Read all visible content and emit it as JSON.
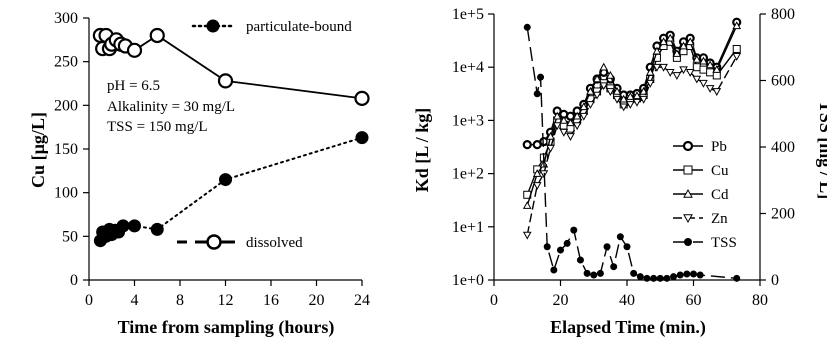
{
  "colors": {
    "ink": "#000000",
    "background": "#ffffff"
  },
  "chart_data": [
    {
      "type": "scatter",
      "xlabel": "Time from sampling (hours)",
      "ylabel": "Cu [µg/L]",
      "xlim": [
        0,
        24
      ],
      "ylim": [
        0,
        300
      ],
      "xticks": [
        "0",
        "4",
        "8",
        "12",
        "16",
        "20",
        "24"
      ],
      "yticks": [
        "0",
        "50",
        "100",
        "150",
        "200",
        "250",
        "300"
      ],
      "annotations": [
        "pH = 6.5",
        "Alkalinity = 30 mg/L",
        "TSS = 150 mg/L"
      ],
      "legend_position": "top-right and lower-middle",
      "series": [
        {
          "name": "particulate-bound",
          "marker": "filled-circle",
          "line": "dotted",
          "x": [
            1.0,
            1.2,
            1.5,
            1.8,
            2.0,
            2.3,
            2.6,
            3.0,
            4.0,
            6.0,
            12.0,
            24.0
          ],
          "y": [
            45,
            55,
            50,
            58,
            52,
            57,
            55,
            62,
            62,
            58,
            115,
            163
          ]
        },
        {
          "name": "dissolved",
          "marker": "open-circle",
          "line": "solid",
          "x": [
            1.0,
            1.2,
            1.5,
            1.8,
            2.0,
            2.4,
            2.8,
            3.2,
            4.0,
            6.0,
            12.0,
            24.0
          ],
          "y": [
            280,
            265,
            280,
            265,
            270,
            275,
            270,
            268,
            263,
            280,
            228,
            208
          ]
        }
      ]
    },
    {
      "type": "line",
      "xlabel": "Elapsed Time (min.)",
      "ylabel": "Kd [L / kg]",
      "ylabel_right": "TSS [mg / L]",
      "xlim": [
        0,
        80
      ],
      "ylim": [
        1,
        100000
      ],
      "y_scale": "log",
      "ylim_right": [
        0,
        800
      ],
      "xticks": [
        "0",
        "20",
        "40",
        "60",
        "80"
      ],
      "yticks": [
        "1e+0",
        "1e+1",
        "1e+2",
        "1e+3",
        "1e+4",
        "1e+5"
      ],
      "yticks_right": [
        "0",
        "200",
        "400",
        "600",
        "800"
      ],
      "legend_position": "right-middle",
      "series": [
        {
          "name": "Pb",
          "marker": "open-circle",
          "line": "solid",
          "axis": "left",
          "x": [
            10,
            13,
            15,
            17,
            19,
            21,
            23,
            25,
            27,
            29,
            31,
            33,
            35,
            37,
            39,
            41,
            43,
            45,
            47,
            49,
            51,
            53,
            55,
            57,
            59,
            61,
            63,
            65,
            67,
            73
          ],
          "y": [
            350,
            350,
            400,
            600,
            1500,
            1300,
            1200,
            1500,
            2000,
            4000,
            6000,
            8000,
            6000,
            4000,
            3000,
            3000,
            3200,
            4000,
            10000,
            25000,
            35000,
            40000,
            20000,
            30000,
            35000,
            15000,
            15000,
            12000,
            10000,
            70000
          ]
        },
        {
          "name": "Cu",
          "marker": "open-square",
          "line": "solid",
          "axis": "left",
          "x": [
            10,
            13,
            15,
            17,
            19,
            21,
            23,
            25,
            27,
            29,
            31,
            33,
            35,
            37,
            39,
            41,
            43,
            45,
            47,
            49,
            51,
            53,
            55,
            57,
            59,
            61,
            63,
            65,
            67,
            73
          ],
          "y": [
            40,
            120,
            200,
            400,
            1000,
            800,
            700,
            1000,
            1500,
            2500,
            3500,
            5000,
            4000,
            3000,
            2000,
            2500,
            2600,
            3000,
            6000,
            15000,
            25000,
            30000,
            15000,
            20000,
            25000,
            10000,
            9000,
            8000,
            7000,
            22000
          ]
        },
        {
          "name": "Cd",
          "marker": "open-triangle",
          "line": "solid",
          "axis": "left",
          "x": [
            10,
            13,
            15,
            17,
            19,
            21,
            23,
            25,
            27,
            29,
            31,
            33,
            35,
            37,
            39,
            41,
            43,
            45,
            47,
            49,
            51,
            53,
            55,
            57,
            59,
            61,
            63,
            65,
            67,
            73
          ],
          "y": [
            25,
            100,
            150,
            500,
            1200,
            1000,
            900,
            1200,
            1800,
            3500,
            6000,
            10000,
            7000,
            3500,
            2500,
            2800,
            2900,
            3500,
            8000,
            20000,
            30000,
            35000,
            18000,
            25000,
            30000,
            14000,
            13000,
            11000,
            9000,
            60000
          ]
        },
        {
          "name": "Zn",
          "marker": "open-down-triangle",
          "line": "dashed",
          "axis": "left",
          "x": [
            10,
            13,
            15,
            17,
            19,
            21,
            23,
            25,
            27,
            29,
            31,
            33,
            35,
            37,
            39,
            41,
            43,
            45,
            47,
            49,
            51,
            53,
            55,
            57,
            59,
            61,
            63,
            65,
            67,
            73
          ],
          "y": [
            7,
            60,
            100,
            300,
            800,
            600,
            500,
            800,
            1200,
            2000,
            3000,
            4500,
            3500,
            2500,
            1800,
            2000,
            2200,
            2500,
            5000,
            10000,
            10000,
            8000,
            7000,
            9000,
            8000,
            6000,
            5000,
            4000,
            3500,
            16000
          ]
        },
        {
          "name": "TSS",
          "marker": "filled-circle",
          "line": "long-dash",
          "axis": "right",
          "x": [
            10,
            13,
            14,
            16,
            18,
            20,
            22,
            24,
            26,
            28,
            30,
            32,
            34,
            36,
            38,
            40,
            42,
            44,
            46,
            48,
            50,
            52,
            54,
            56,
            58,
            60,
            62,
            73
          ],
          "y": [
            760,
            560,
            610,
            100,
            30,
            90,
            110,
            150,
            60,
            20,
            15,
            20,
            100,
            40,
            130,
            100,
            20,
            10,
            5,
            5,
            5,
            5,
            10,
            15,
            18,
            18,
            15,
            5
          ]
        }
      ]
    }
  ]
}
